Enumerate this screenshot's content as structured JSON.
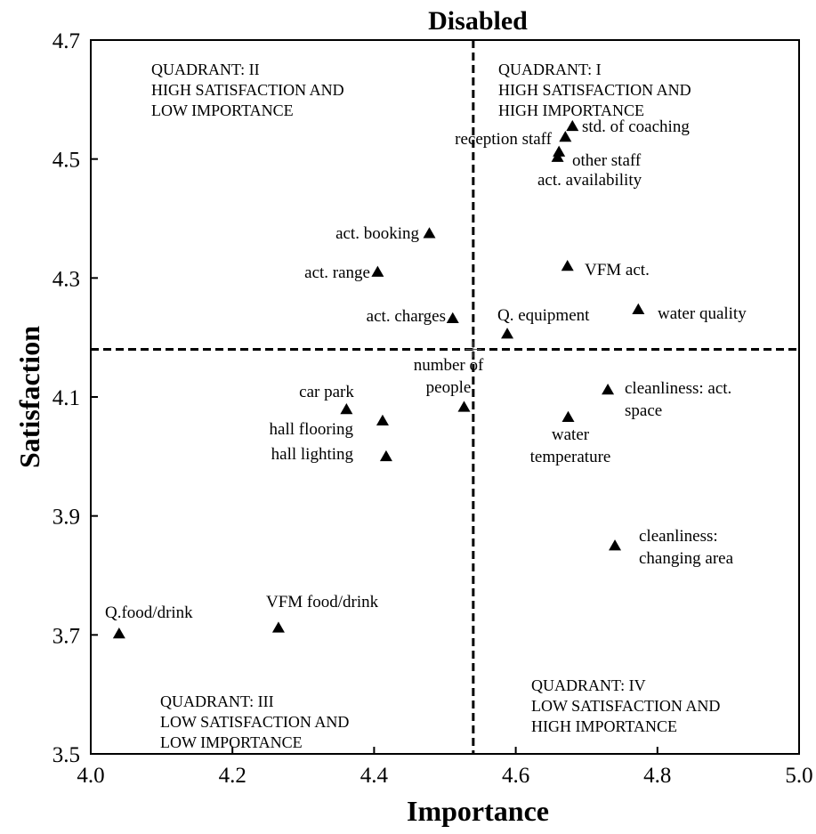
{
  "chart_data": {
    "type": "scatter",
    "title": "Disabled",
    "xlabel": "Importance",
    "ylabel": "Satisfaction",
    "xlim": [
      4.0,
      5.0
    ],
    "ylim": [
      3.5,
      4.7
    ],
    "xticks": [
      "4.0",
      "4.2",
      "4.4",
      "4.6",
      "4.8",
      "5.0"
    ],
    "yticks": [
      "3.5",
      "3.7",
      "3.9",
      "4.1",
      "4.3",
      "4.5",
      "4.7"
    ],
    "marker": "triangle",
    "marker_color": "#000000",
    "mean_lines": {
      "x": 4.54,
      "y": 4.18
    },
    "quadrants": [
      {
        "id": "q1",
        "lines": [
          "QUADRANT: I",
          "HIGH SATISFACTION AND",
          "HIGH IMPORTANCE"
        ]
      },
      {
        "id": "q2",
        "lines": [
          "QUADRANT: II",
          "HIGH SATISFACTION AND",
          "LOW IMPORTANCE"
        ]
      },
      {
        "id": "q3",
        "lines": [
          "QUADRANT: III",
          "LOW SATISFACTION AND",
          "LOW IMPORTANCE"
        ]
      },
      {
        "id": "q4",
        "lines": [
          "QUADRANT: IV",
          "LOW SATISFACTION AND",
          "HIGH IMPORTANCE"
        ]
      }
    ],
    "points": [
      {
        "label": [
          "std. of coaching"
        ],
        "x": 4.68,
        "y": 4.555
      },
      {
        "label": [
          "reception staff"
        ],
        "x": 4.67,
        "y": 4.537
      },
      {
        "label": [
          "other staff"
        ],
        "x": 4.661,
        "y": 4.512
      },
      {
        "label": [
          "act. availability"
        ],
        "x": 4.659,
        "y": 4.503
      },
      {
        "label": [
          "act. booking"
        ],
        "x": 4.478,
        "y": 4.375
      },
      {
        "label": [
          "act. range"
        ],
        "x": 4.405,
        "y": 4.31
      },
      {
        "label": [
          "VFM act."
        ],
        "x": 4.673,
        "y": 4.32
      },
      {
        "label": [
          "act. charges"
        ],
        "x": 4.511,
        "y": 4.232
      },
      {
        "label": [
          "Q. equipment"
        ],
        "x": 4.588,
        "y": 4.206
      },
      {
        "label": [
          "water quality"
        ],
        "x": 4.773,
        "y": 4.247
      },
      {
        "label": [
          "number of",
          "people"
        ],
        "x": 4.527,
        "y": 4.083
      },
      {
        "label": [
          "car park"
        ],
        "x": 4.361,
        "y": 4.079
      },
      {
        "label": [
          "hall flooring"
        ],
        "x": 4.412,
        "y": 4.06
      },
      {
        "label": [
          "hall lighting"
        ],
        "x": 4.417,
        "y": 4.0
      },
      {
        "label": [
          "cleanliness: act.",
          "space"
        ],
        "x": 4.73,
        "y": 4.112
      },
      {
        "label": [
          "water",
          "temperature"
        ],
        "x": 4.674,
        "y": 4.066
      },
      {
        "label": [
          "cleanliness:",
          "changing area"
        ],
        "x": 4.74,
        "y": 3.85
      },
      {
        "label": [
          "Q.food/drink"
        ],
        "x": 4.04,
        "y": 3.702
      },
      {
        "label": [
          "VFM food/drink"
        ],
        "x": 4.265,
        "y": 3.712
      }
    ]
  }
}
